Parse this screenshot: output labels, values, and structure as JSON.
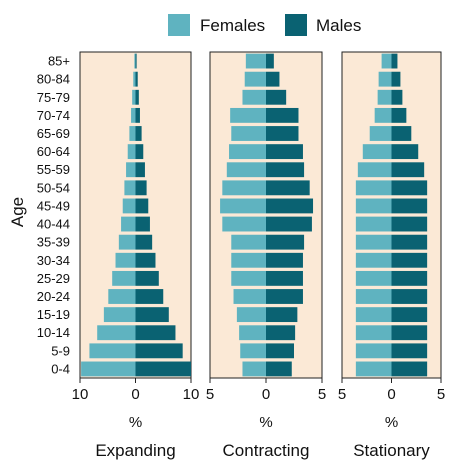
{
  "chart_data": {
    "type": "bar",
    "orientation": "horizontal",
    "layout": "population-pyramid",
    "ylabel": "Age",
    "categories": [
      "85+",
      "80-84",
      "75-79",
      "70-74",
      "65-69",
      "60-64",
      "55-59",
      "50-54",
      "45-49",
      "40-44",
      "35-39",
      "30-34",
      "25-29",
      "20-24",
      "15-19",
      "10-14",
      "5-9",
      "0-4"
    ],
    "legend": {
      "position": "top",
      "items": [
        {
          "name": "Females",
          "color": "#5fb3c0"
        },
        {
          "name": "Males",
          "color": "#0a6272"
        }
      ]
    },
    "panel_background": "#fbe9d6",
    "panels": [
      {
        "title": "Expanding",
        "xlabel": "%",
        "xlim": [
          -10,
          10
        ],
        "xticks": [
          {
            "value": -10,
            "label": "10"
          },
          {
            "value": 0,
            "label": "0"
          },
          {
            "value": 10,
            "label": "10"
          }
        ],
        "series": [
          {
            "name": "Females",
            "values": [
              0.2,
              0.4,
              0.6,
              0.8,
              1.1,
              1.4,
              1.7,
              2.0,
              2.3,
              2.6,
              3.0,
              3.6,
              4.2,
              4.9,
              5.7,
              6.9,
              8.3,
              9.8
            ]
          },
          {
            "name": "Males",
            "values": [
              0.2,
              0.4,
              0.6,
              0.8,
              1.1,
              1.4,
              1.7,
              2.0,
              2.3,
              2.6,
              3.0,
              3.6,
              4.2,
              5.0,
              6.0,
              7.2,
              8.5,
              10.0
            ]
          }
        ]
      },
      {
        "title": "Contracting",
        "xlabel": "%",
        "xlim": [
          -5,
          5
        ],
        "xticks": [
          {
            "value": -5,
            "label": "5"
          },
          {
            "value": 0,
            "label": "0"
          },
          {
            "value": 5,
            "label": "5"
          }
        ],
        "series": [
          {
            "name": "Females",
            "values": [
              1.8,
              1.9,
              2.1,
              3.2,
              3.1,
              3.3,
              3.5,
              3.9,
              4.1,
              3.9,
              3.1,
              3.1,
              3.1,
              2.9,
              2.6,
              2.4,
              2.3,
              2.1
            ]
          },
          {
            "name": "Males",
            "values": [
              0.7,
              1.2,
              1.8,
              2.9,
              2.9,
              3.3,
              3.4,
              3.9,
              4.2,
              4.1,
              3.4,
              3.3,
              3.3,
              3.3,
              2.8,
              2.6,
              2.5,
              2.3
            ]
          }
        ]
      },
      {
        "title": "Stationary",
        "xlabel": "%",
        "xlim": [
          -5,
          5
        ],
        "xticks": [
          {
            "value": -5,
            "label": "5"
          },
          {
            "value": 0,
            "label": "0"
          },
          {
            "value": 5,
            "label": "5"
          }
        ],
        "series": [
          {
            "name": "Females",
            "values": [
              1.0,
              1.3,
              1.4,
              1.7,
              2.2,
              2.9,
              3.4,
              3.6,
              3.6,
              3.6,
              3.6,
              3.6,
              3.6,
              3.6,
              3.6,
              3.6,
              3.6,
              3.6
            ]
          },
          {
            "name": "Males",
            "values": [
              0.6,
              0.9,
              1.1,
              1.5,
              2.0,
              2.7,
              3.3,
              3.6,
              3.6,
              3.6,
              3.6,
              3.6,
              3.6,
              3.6,
              3.6,
              3.6,
              3.6,
              3.6
            ]
          }
        ]
      }
    ]
  }
}
